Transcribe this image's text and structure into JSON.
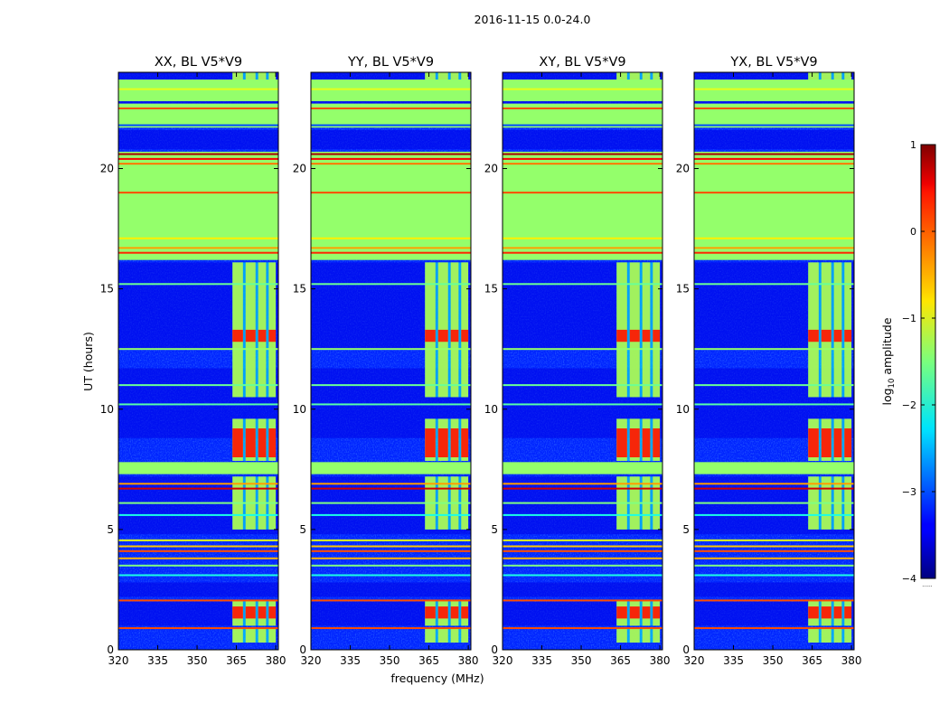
{
  "figure": {
    "suptitle": "2016-11-15 0.0-24.0",
    "xlabel": "frequency (MHz)",
    "ylabel": "UT (hours)",
    "colorbar": {
      "label_prefix": "log",
      "label_sub": "10",
      "label_suffix": " amplitude",
      "footnote": "......"
    }
  },
  "chart_data": {
    "type": "heatmap",
    "panels": [
      {
        "title": "XX, BL V5*V9"
      },
      {
        "title": "YY, BL V5*V9"
      },
      {
        "title": "XY, BL V5*V9"
      },
      {
        "title": "YX, BL V5*V9"
      }
    ],
    "xlim": [
      320,
      381
    ],
    "xticks": [
      320,
      335,
      350,
      365,
      380
    ],
    "ylim": [
      0,
      24
    ],
    "yticks": [
      0,
      5,
      10,
      15,
      20
    ],
    "colorbar": {
      "vmin": -4,
      "vmax": 1,
      "ticks": [
        1,
        0,
        -1,
        -2,
        -3,
        -4
      ],
      "tick_labels": [
        "1",
        "0",
        "−1",
        "−2",
        "−3",
        "−4"
      ],
      "colormap": "jet"
    },
    "flagged_value": -1.4,
    "rfi_band_mhz": [
      363.5,
      380
    ],
    "rfi_channels_mhz": [
      [
        363.5,
        367.5
      ],
      [
        368.5,
        372.3
      ],
      [
        373.3,
        376.3
      ],
      [
        377.3,
        380
      ]
    ],
    "background_level": -3.2,
    "flagged_blocks_ut": [
      [
        7.3,
        7.8
      ],
      [
        16.2,
        20.7
      ],
      [
        21.7,
        22.7
      ],
      [
        22.8,
        23.7
      ]
    ],
    "quiet_blocks_ut": [
      [
        1.0,
        2.0
      ],
      [
        2.2,
        2.8
      ],
      [
        4.8,
        7.2
      ],
      [
        8.8,
        11.7
      ],
      [
        12.5,
        16.1
      ],
      [
        20.8,
        21.6
      ],
      [
        22.7,
        22.8
      ],
      [
        23.7,
        24.0
      ]
    ],
    "rfi_active_ut": [
      [
        0.3,
        0.9
      ],
      [
        1.0,
        2.05
      ],
      [
        5.0,
        7.2
      ],
      [
        7.85,
        9.6
      ],
      [
        10.5,
        16.1
      ],
      [
        19.3,
        19.5
      ],
      [
        23.0,
        24.0
      ]
    ],
    "rfi_peak_ut": [
      [
        8.0,
        9.2
      ],
      [
        1.3,
        1.8
      ],
      [
        12.8,
        13.3
      ]
    ],
    "rfi_peak_level": 0.3,
    "rfi_active_level": -1.2,
    "rfi_faint_level": -2.3,
    "lines_ut": [
      {
        "t": 0.9,
        "v": 0.0
      },
      {
        "t": 2.05,
        "v": 0.0
      },
      {
        "t": 3.1,
        "v": -2.0
      },
      {
        "t": 3.5,
        "v": -1.5
      },
      {
        "t": 3.8,
        "v": -0.5
      },
      {
        "t": 4.1,
        "v": 0.0
      },
      {
        "t": 4.3,
        "v": -0.6
      },
      {
        "t": 4.55,
        "v": -1.0
      },
      {
        "t": 5.6,
        "v": -2.0
      },
      {
        "t": 6.1,
        "v": -1.5
      },
      {
        "t": 6.7,
        "v": 0.6
      },
      {
        "t": 6.9,
        "v": -0.4
      },
      {
        "t": 10.2,
        "v": -1.7
      },
      {
        "t": 11.0,
        "v": -1.6
      },
      {
        "t": 12.5,
        "v": -1.4
      },
      {
        "t": 15.2,
        "v": -1.6
      },
      {
        "t": 16.5,
        "v": 0.2
      },
      {
        "t": 16.7,
        "v": -0.4
      },
      {
        "t": 17.1,
        "v": -0.8
      },
      {
        "t": 19.0,
        "v": 0.0
      },
      {
        "t": 20.2,
        "v": -0.2
      },
      {
        "t": 20.4,
        "v": 0.4
      },
      {
        "t": 20.6,
        "v": 0.8
      },
      {
        "t": 21.8,
        "v": -3.0
      },
      {
        "t": 22.5,
        "v": 0.0
      },
      {
        "t": 23.3,
        "v": -1.0
      }
    ]
  }
}
